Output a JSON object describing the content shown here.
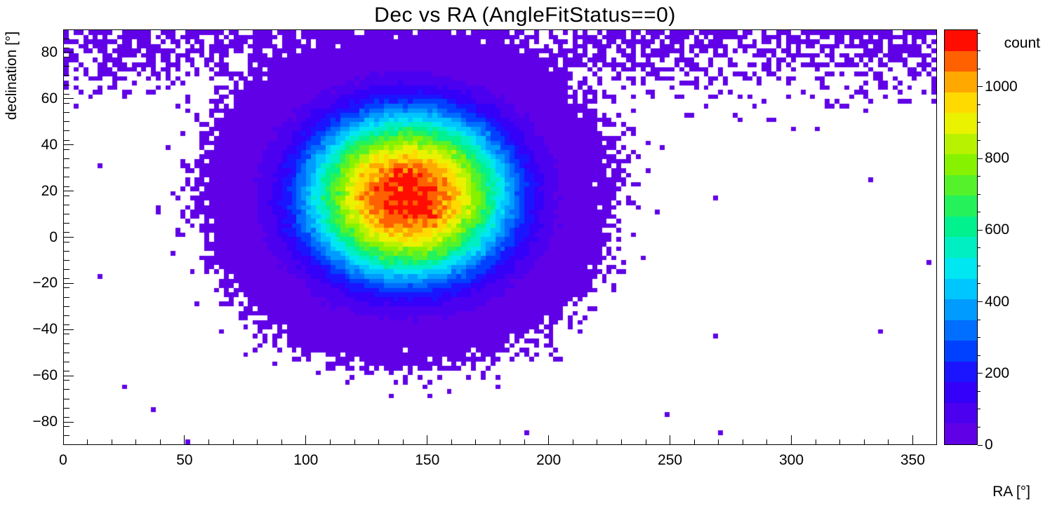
{
  "chart_data": {
    "type": "heatmap",
    "title": "Dec vs RA (AngleFitStatus==0)",
    "xlabel": "RA [°]",
    "ylabel": "declination [°]",
    "zlabel": "count",
    "xlim": [
      0,
      360
    ],
    "ylim": [
      -90,
      90
    ],
    "zlim": [
      0,
      1160
    ],
    "x_major_ticks": [
      0,
      50,
      100,
      150,
      200,
      250,
      300,
      350
    ],
    "x_minor_step": 10,
    "y_major_ticks": [
      -80,
      -60,
      -40,
      -20,
      0,
      20,
      40,
      60,
      80
    ],
    "y_minor_step": 4,
    "grid": false,
    "plot_bg": "#ffffff",
    "frame_color": "#000000",
    "bin_size_deg": {
      "ra": 2,
      "dec": 2
    },
    "colorbar": {
      "label": "count",
      "ticks": [
        0,
        200,
        400,
        600,
        800,
        1000
      ],
      "minor_step": 50,
      "levels": 20,
      "palette": [
        "#6000E6",
        "#4B00EF",
        "#3400F8",
        "#1B14FF",
        "#0041FF",
        "#006EFF",
        "#009BFF",
        "#00C6FF",
        "#00E7F2",
        "#00EFC2",
        "#00F18E",
        "#25F25A",
        "#55F22B",
        "#86F200",
        "#B8F200",
        "#EAF200",
        "#FFDA00",
        "#FFA800",
        "#FF6000",
        "#FF0D00"
      ]
    },
    "distribution": {
      "model": "elliptical super-gaussian peak + circumpolar band + sparse background (counts per 2x2 deg bin)",
      "peak": {
        "ra": 142,
        "dec": 18,
        "count": 1130
      },
      "core_sigma": {
        "ra": 29,
        "dec": 25
      },
      "falloff_exponent": 1.3,
      "polar_band": {
        "dec_center": 90,
        "dec_sigma": 14,
        "amplitude": 1.2
      },
      "background_rate": 0.0012,
      "seed": 20240613
    }
  }
}
